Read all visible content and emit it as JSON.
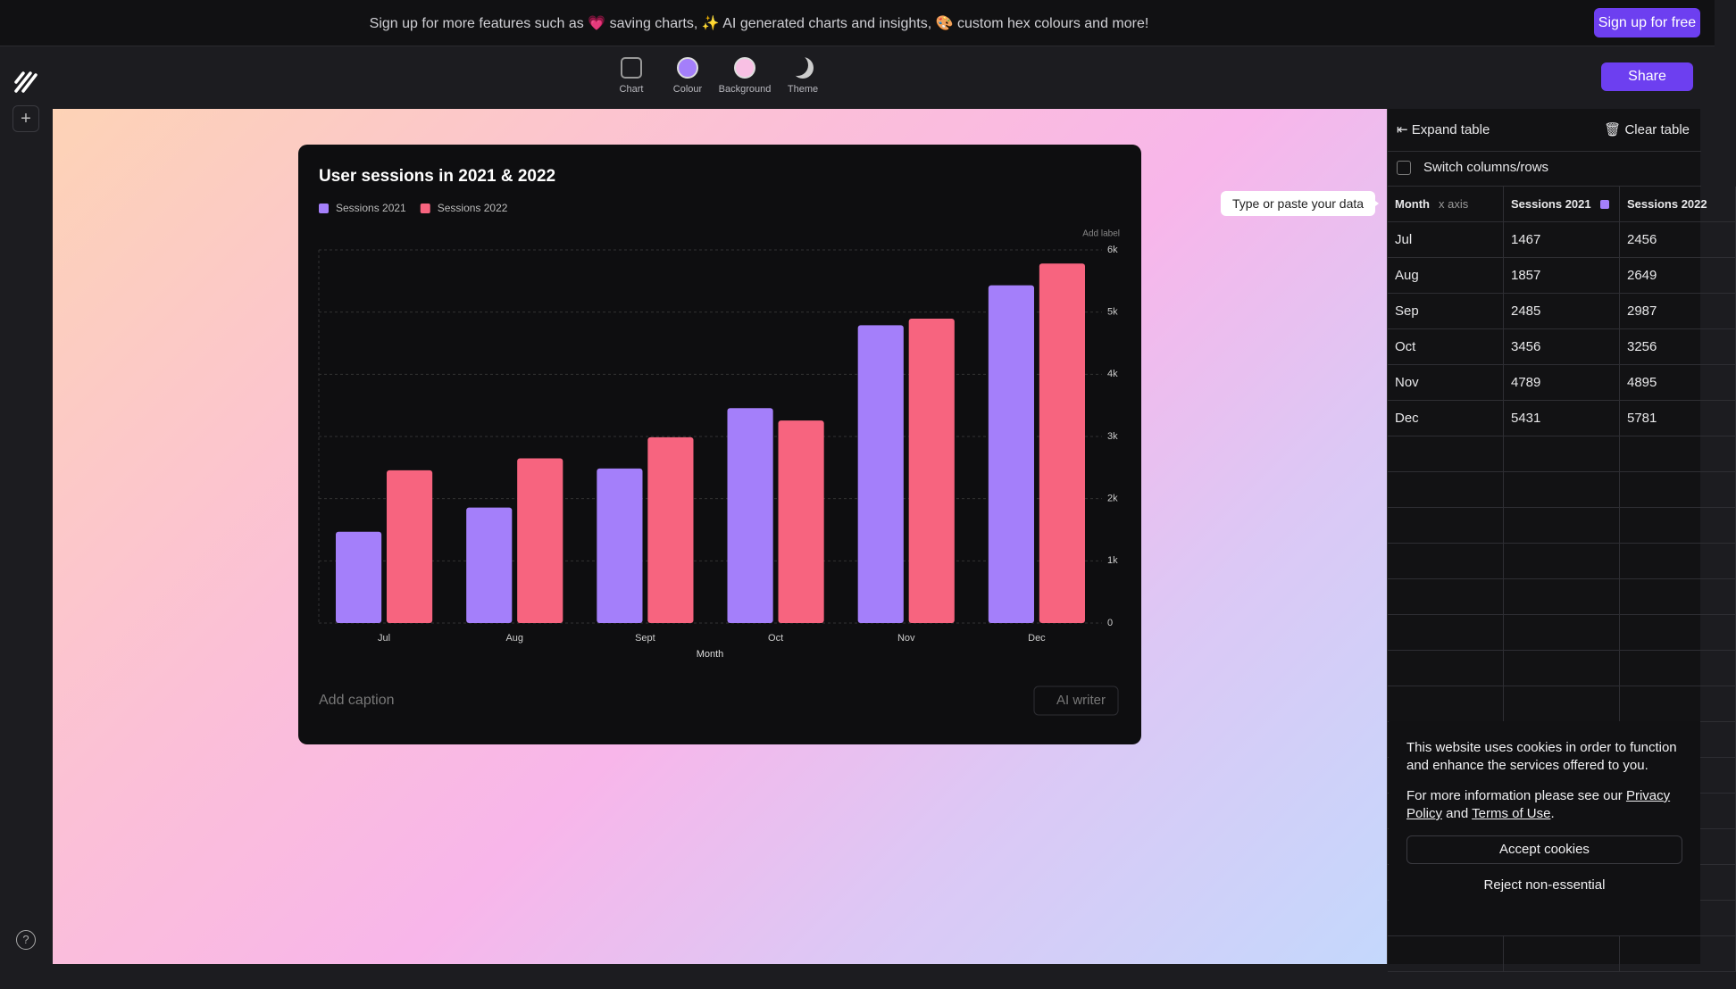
{
  "banner": {
    "text": "Sign up for more features such as 💗 saving charts, ✨ AI generated charts and insights, 🎨 custom hex colours and more!",
    "button": "Sign up for free"
  },
  "toolbar": {
    "items": [
      "Chart",
      "Colour",
      "Background",
      "Theme"
    ],
    "share": "Share"
  },
  "chart_data": {
    "type": "bar",
    "title": "User sessions in 2021 & 2022",
    "categories": [
      "Jul",
      "Aug",
      "Sept",
      "Oct",
      "Nov",
      "Dec"
    ],
    "series": [
      {
        "name": "Sessions 2021",
        "color": "#a47ffa",
        "values": [
          1467,
          1857,
          2485,
          3456,
          4789,
          5431
        ]
      },
      {
        "name": "Sessions 2022",
        "color": "#f7647f",
        "values": [
          2456,
          2649,
          2987,
          3256,
          4895,
          5781
        ]
      }
    ],
    "x_label": "Month",
    "annotation": "Add label",
    "ylim": [
      0,
      6000
    ],
    "yticks": [
      0,
      {
        "value": 1000,
        "label": "1k"
      },
      {
        "value": 2000,
        "label": "2k"
      },
      {
        "value": 3000,
        "label": "3k"
      },
      {
        "value": 4000,
        "label": "4k"
      },
      {
        "value": 5000,
        "label": "5k"
      },
      {
        "value": 6000,
        "label": "6k"
      }
    ],
    "grid": true,
    "caption": "Add caption",
    "ai_button": "AI writer"
  },
  "table": {
    "expand": "Expand table",
    "clear": "Clear table",
    "switch": "Switch columns/rows",
    "tooltip": "Type or paste your data",
    "headers": [
      "Month",
      "Sessions 2021",
      "Sessions 2022"
    ],
    "axis_tag": "x axis",
    "rows": [
      [
        "Jul",
        1467,
        2456
      ],
      [
        "Aug",
        1857,
        2649
      ],
      [
        "Sep",
        2485,
        2987
      ],
      [
        "Oct",
        3456,
        3256
      ],
      [
        "Nov",
        4789,
        4895
      ],
      [
        "Dec",
        5431,
        5781
      ]
    ]
  },
  "cookie": {
    "text": "This website uses cookies in order to function and enhance the services offered to you.",
    "more": [
      "For more information please see our ",
      "Privacy Policy",
      " and ",
      "Terms of Use",
      "."
    ],
    "accept": "Accept cookies",
    "reject": "Reject non-essential"
  }
}
